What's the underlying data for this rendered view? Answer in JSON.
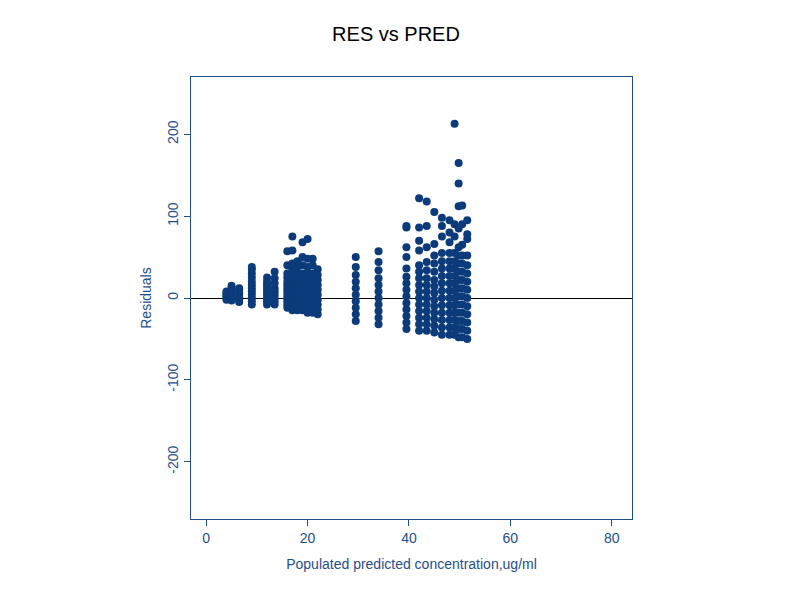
{
  "chart_data": {
    "type": "scatter",
    "title": "RES vs PRED",
    "x_label": "Populated predicted concentration,ug/ml",
    "y_label": "Residuals",
    "color": "#0b3b7a",
    "marker": "circle",
    "xlim": [
      -3,
      84
    ],
    "ylim": [
      -270,
      270
    ],
    "xticks": [
      0,
      20,
      40,
      60,
      80
    ],
    "yticks": [
      -200,
      -100,
      0,
      100,
      200
    ],
    "grid": false,
    "x": [
      4,
      4,
      4,
      4,
      4,
      4,
      5,
      5,
      5,
      5,
      5,
      5,
      5,
      6.5,
      6.5,
      6.5,
      6.5,
      6.5,
      6.5,
      6.5,
      9,
      9,
      9,
      9,
      9,
      9,
      9,
      9,
      9,
      9,
      9,
      9,
      12,
      12,
      12,
      12,
      12,
      12,
      12,
      12,
      12,
      13.5,
      13.5,
      13.5,
      13.5,
      13.5,
      13.5,
      13.5,
      13.5,
      13.5,
      16,
      16,
      16,
      16,
      16,
      16,
      16,
      16,
      16,
      16,
      16,
      16,
      16,
      17,
      17,
      17,
      17,
      17,
      17,
      17,
      17,
      17,
      17,
      17,
      17,
      17,
      17,
      18,
      18,
      18,
      18,
      18,
      18,
      18,
      18,
      18,
      18,
      18,
      18,
      19,
      19,
      19,
      19,
      19,
      19,
      19,
      19,
      19,
      19,
      19,
      19,
      19,
      20,
      20,
      20,
      20,
      20,
      20,
      20,
      20,
      20,
      20,
      20,
      20,
      21,
      21,
      21,
      21,
      21,
      21,
      21,
      21,
      21,
      21,
      21,
      22,
      22,
      22,
      22,
      22,
      22,
      22,
      22,
      22,
      22,
      29.5,
      29.5,
      29.5,
      29.5,
      29.5,
      29.5,
      29.5,
      29.5,
      29.5,
      29.5,
      34,
      34,
      34,
      34,
      34,
      34,
      34,
      34,
      34,
      34,
      34,
      39.5,
      39.5,
      39.5,
      39.5,
      39.5,
      39.5,
      39.5,
      39.5,
      39.5,
      39.5,
      39.5,
      39.5,
      39.5,
      39.5,
      42,
      42,
      42,
      42,
      42,
      42,
      42,
      42,
      42,
      42,
      42,
      42,
      42,
      42,
      42,
      43.5,
      43.5,
      43.5,
      43.5,
      43.5,
      43.5,
      43.5,
      43.5,
      43.5,
      43.5,
      43.5,
      43.5,
      43.5,
      43.5,
      45,
      45,
      45,
      45,
      45,
      45,
      45,
      45,
      45,
      45,
      45,
      45,
      45,
      45,
      46.5,
      46.5,
      46.5,
      46.5,
      46.5,
      46.5,
      46.5,
      46.5,
      46.5,
      46.5,
      46.5,
      46.5,
      46.5,
      46.5,
      46.5,
      48,
      48,
      48,
      48,
      48,
      48,
      48,
      48,
      48,
      48,
      48,
      48,
      48,
      48,
      48,
      49,
      49,
      49,
      49,
      49,
      49,
      49,
      49,
      49,
      49,
      49,
      49,
      49,
      49,
      49,
      49.8,
      49.8,
      49.8,
      49.8,
      49.8,
      49.8,
      49.8,
      49.8,
      49.8,
      49.8,
      49.8,
      49.8,
      49.8,
      49.8,
      49.8,
      49.8,
      50.5,
      50.5,
      50.5,
      50.5,
      50.5,
      50.5,
      50.5,
      50.5,
      50.5,
      50.5,
      50.5,
      50.5,
      50.5,
      50.5,
      51.5,
      51.5,
      51.5,
      51.5,
      51.5,
      51.5,
      51.5,
      51.5,
      51.5,
      51.5,
      51.5,
      51.5,
      51.5,
      51.5
    ],
    "values": [
      -2,
      0,
      2,
      4,
      6,
      8,
      -3,
      0,
      3,
      6,
      9,
      12,
      15,
      -5,
      -2,
      1,
      4,
      7,
      10,
      12,
      -8,
      -4,
      0,
      4,
      8,
      12,
      16,
      20,
      25,
      30,
      35,
      38,
      -8,
      -4,
      0,
      4,
      8,
      12,
      16,
      20,
      25,
      -8,
      -4,
      0,
      4,
      8,
      12,
      18,
      24,
      32,
      -12,
      -8,
      -4,
      0,
      4,
      8,
      12,
      16,
      20,
      25,
      30,
      40,
      57,
      -15,
      -10,
      -5,
      0,
      5,
      10,
      15,
      20,
      25,
      30,
      35,
      42,
      58,
      75,
      -15,
      -10,
      -5,
      0,
      5,
      10,
      15,
      20,
      25,
      30,
      38,
      45,
      -15,
      -10,
      -5,
      0,
      5,
      10,
      15,
      20,
      25,
      30,
      40,
      50,
      68,
      -18,
      -12,
      -6,
      0,
      6,
      12,
      18,
      24,
      30,
      38,
      48,
      72,
      -18,
      -12,
      -6,
      0,
      6,
      12,
      18,
      24,
      30,
      40,
      48,
      -20,
      -14,
      -8,
      -2,
      4,
      10,
      16,
      22,
      28,
      35,
      -28,
      -20,
      -12,
      -4,
      4,
      12,
      20,
      28,
      38,
      50,
      -32,
      -24,
      -16,
      -8,
      0,
      8,
      16,
      24,
      34,
      44,
      57,
      -38,
      -30,
      -22,
      -14,
      -6,
      2,
      10,
      18,
      26,
      36,
      50,
      62,
      86,
      88,
      -40,
      -32,
      -24,
      -16,
      -8,
      0,
      8,
      16,
      24,
      32,
      40,
      58,
      70,
      86,
      122,
      -40,
      -32,
      -24,
      -16,
      -8,
      0,
      8,
      16,
      24,
      34,
      44,
      62,
      88,
      118,
      -42,
      -34,
      -26,
      -18,
      -10,
      -2,
      6,
      14,
      22,
      32,
      42,
      52,
      66,
      105,
      -45,
      -36,
      -27,
      -18,
      -9,
      0,
      9,
      18,
      27,
      36,
      45,
      55,
      75,
      88,
      98,
      -45,
      -36,
      -27,
      -18,
      -9,
      0,
      9,
      18,
      27,
      36,
      45,
      55,
      68,
      80,
      95,
      -45,
      -36,
      -27,
      -18,
      -9,
      0,
      9,
      18,
      27,
      36,
      45,
      55,
      75,
      90,
      213,
      -48,
      -38,
      -28,
      -18,
      -8,
      2,
      12,
      22,
      32,
      42,
      52,
      62,
      85,
      112,
      140,
      165,
      -48,
      -38,
      -28,
      -18,
      -8,
      2,
      12,
      22,
      32,
      42,
      52,
      65,
      90,
      113,
      -50,
      -40,
      -30,
      -20,
      -10,
      0,
      10,
      20,
      30,
      40,
      52,
      72,
      78,
      95
    ]
  }
}
